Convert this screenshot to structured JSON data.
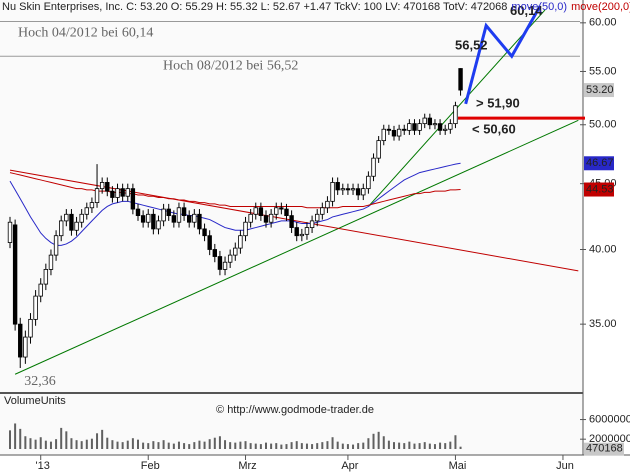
{
  "header": "Nu Skin Enterprises, Inc. C: 53.20 O: 55.29 H: 55.32 L: 52.67 +1.47 TckV: 100 LV: 470168 TotV: 472068",
  "chart_data": {
    "type": "candlestick",
    "categories": [
      null,
      null,
      null,
      null,
      null,
      null,
      "'13",
      null,
      null,
      null,
      null,
      null,
      null,
      null,
      null,
      null,
      null,
      null,
      null,
      null,
      null,
      null,
      null,
      null,
      null,
      null,
      null,
      "Feb",
      null,
      null,
      null,
      null,
      null,
      null,
      null,
      null,
      null,
      null,
      null,
      null,
      null,
      null,
      null,
      null,
      null,
      null,
      "Mrz",
      null,
      null,
      null,
      null,
      null,
      null,
      null,
      null,
      null,
      null,
      null,
      null,
      null,
      null,
      null,
      null,
      null,
      null,
      null,
      "Apr",
      null,
      null,
      null,
      null,
      null,
      null,
      null,
      null,
      null,
      null,
      null,
      null,
      null,
      null,
      null,
      null,
      null,
      null,
      null,
      null,
      "Mai",
      null,
      null,
      null,
      null,
      null,
      null,
      null,
      null,
      null,
      null,
      null,
      null,
      null,
      null,
      null,
      null,
      null,
      null,
      null,
      null,
      "Jun",
      null
    ],
    "open": [
      40.5,
      41.8,
      35.0,
      33.0,
      34.2,
      35.3,
      36.8,
      37.6,
      38.6,
      39.6,
      41.0,
      42.1,
      42.6,
      41.4,
      42.0,
      42.6,
      43.1,
      43.5,
      44.6,
      45.1,
      44.4,
      43.9,
      44.6,
      44.0,
      44.6,
      43.0,
      42.5,
      42.0,
      42.6,
      41.5,
      42.1,
      43.0,
      42.5,
      42.0,
      43.1,
      42.5,
      42.0,
      42.6,
      41.5,
      41.0,
      40.0,
      39.5,
      38.6,
      39.1,
      39.6,
      40.1,
      41.0,
      42.0,
      42.6,
      43.1,
      42.5,
      42.0,
      42.6,
      43.1,
      43.0,
      42.5,
      41.6,
      41.0,
      41.1,
      41.6,
      42.1,
      42.6,
      43.1,
      43.6,
      45.1,
      44.5,
      44.6,
      44.5,
      44.6,
      44.1,
      44.6,
      45.6,
      47.1,
      48.6,
      49.6,
      49.5,
      49.0,
      49.6,
      49.5,
      50.1,
      49.5,
      50.1,
      50.6,
      50.0,
      50.1,
      49.5,
      49.6,
      50.1,
      55.29,
      null,
      null,
      null,
      null,
      null,
      null,
      null,
      null,
      null,
      null,
      null,
      null,
      null,
      null,
      null,
      null,
      null,
      null,
      null,
      null,
      null
    ],
    "high": [
      42.4,
      42.2,
      35.4,
      34.6,
      35.7,
      37.2,
      38.0,
      39.0,
      40.0,
      41.4,
      42.5,
      43.0,
      43.0,
      42.4,
      43.0,
      43.5,
      43.9,
      46.6,
      45.5,
      45.5,
      44.8,
      45.0,
      45.0,
      45.0,
      45.0,
      43.4,
      42.9,
      43.0,
      43.0,
      42.5,
      43.4,
      43.4,
      42.9,
      43.5,
      43.5,
      42.9,
      43.0,
      43.0,
      41.9,
      41.4,
      40.4,
      39.9,
      39.5,
      40.0,
      40.5,
      41.4,
      42.4,
      43.0,
      43.5,
      43.5,
      42.9,
      43.0,
      43.5,
      43.5,
      43.4,
      42.9,
      42.0,
      41.5,
      42.0,
      42.5,
      43.0,
      43.5,
      44.0,
      45.5,
      45.5,
      45.0,
      45.0,
      45.0,
      45.0,
      45.0,
      46.0,
      47.5,
      49.0,
      50.0,
      50.0,
      49.9,
      50.0,
      50.0,
      50.5,
      50.5,
      50.5,
      51.0,
      51.0,
      50.5,
      50.5,
      50.0,
      50.5,
      52.1,
      55.32,
      null,
      null,
      null,
      null,
      null,
      null,
      null,
      null,
      null,
      null,
      null,
      null,
      null,
      null,
      null,
      null,
      null,
      null,
      null,
      null,
      null
    ],
    "low": [
      40.1,
      34.6,
      32.36,
      32.6,
      33.8,
      34.9,
      36.4,
      37.2,
      38.2,
      39.2,
      40.6,
      41.7,
      41.0,
      41.0,
      41.6,
      42.2,
      42.7,
      43.1,
      44.2,
      44.0,
      43.5,
      43.5,
      43.6,
      43.6,
      42.6,
      42.1,
      41.6,
      41.6,
      41.1,
      41.1,
      41.7,
      42.1,
      41.6,
      41.6,
      42.1,
      41.6,
      41.6,
      41.1,
      40.6,
      39.6,
      39.1,
      38.2,
      38.2,
      38.7,
      39.2,
      39.7,
      40.6,
      41.6,
      42.2,
      42.1,
      41.6,
      41.6,
      42.2,
      42.6,
      42.1,
      41.2,
      40.6,
      40.6,
      40.7,
      41.2,
      41.7,
      42.2,
      42.7,
      43.2,
      44.1,
      44.1,
      44.1,
      44.1,
      43.7,
      43.7,
      44.2,
      45.2,
      46.7,
      48.2,
      49.1,
      48.6,
      48.6,
      49.1,
      49.1,
      49.1,
      49.1,
      49.7,
      49.6,
      49.6,
      49.1,
      49.1,
      49.2,
      49.7,
      52.67,
      null,
      null,
      null,
      null,
      null,
      null,
      null,
      null,
      null,
      null,
      null,
      null,
      null,
      null,
      null,
      null,
      null,
      null,
      null,
      null,
      null
    ],
    "close": [
      42.0,
      35.0,
      33.0,
      34.2,
      35.3,
      36.8,
      37.6,
      38.6,
      39.6,
      41.0,
      42.1,
      42.6,
      41.4,
      42.0,
      42.6,
      43.1,
      43.5,
      44.6,
      45.1,
      44.4,
      43.9,
      44.6,
      44.0,
      44.6,
      43.0,
      42.5,
      42.0,
      42.6,
      41.5,
      42.1,
      43.0,
      42.5,
      42.0,
      43.1,
      42.5,
      42.0,
      42.6,
      41.5,
      41.0,
      40.0,
      39.5,
      38.6,
      39.1,
      39.6,
      40.1,
      41.0,
      42.0,
      42.6,
      43.1,
      42.5,
      42.0,
      42.6,
      43.1,
      43.0,
      42.5,
      41.6,
      41.0,
      41.1,
      41.6,
      42.1,
      42.6,
      43.1,
      43.6,
      45.1,
      44.5,
      44.6,
      44.5,
      44.6,
      44.1,
      44.6,
      45.6,
      47.1,
      48.6,
      49.6,
      49.5,
      49.0,
      49.6,
      49.5,
      50.1,
      49.5,
      50.1,
      50.6,
      50.0,
      50.1,
      49.5,
      49.6,
      50.1,
      51.73,
      53.2,
      null,
      null,
      null,
      null,
      null,
      null,
      null,
      null,
      null,
      null,
      null,
      null,
      null,
      null,
      null,
      null,
      null,
      null,
      null,
      null,
      null
    ],
    "close_label": "53.20",
    "low_label": "32,36",
    "up_color": "#ffffff",
    "down_color": "#000000",
    "ylim": [
      31,
      62.5
    ],
    "log_scale": true,
    "yticks": [
      {
        "value": 35,
        "label": "35.00"
      },
      {
        "value": 40,
        "label": "40.00"
      },
      {
        "value": 45,
        "label": "45.00"
      },
      {
        "value": 50,
        "label": "50.00"
      },
      {
        "value": 55,
        "label": "55.00"
      },
      {
        "value": 60,
        "label": "60.00"
      }
    ],
    "series": [
      {
        "name": "move(50,0)",
        "color": "#2828c8",
        "last_label": "46.67",
        "values": [
          45.2,
          44.5,
          43.8,
          43.1,
          42.4,
          41.8,
          41.2,
          40.8,
          40.5,
          40.3,
          40.3,
          40.4,
          40.6,
          40.9,
          41.3,
          41.7,
          42.1,
          42.5,
          42.9,
          43.2,
          43.4,
          43.5,
          43.6,
          43.6,
          43.5,
          43.4,
          43.3,
          43.2,
          43.1,
          43.0,
          42.9,
          42.8,
          42.7,
          42.6,
          42.6,
          42.5,
          42.5,
          42.4,
          42.3,
          42.2,
          42.0,
          41.8,
          41.6,
          41.5,
          41.4,
          41.4,
          41.4,
          41.5,
          41.6,
          41.7,
          41.8,
          41.9,
          42.0,
          42.1,
          42.1,
          42.1,
          42.0,
          41.9,
          41.9,
          41.9,
          42.0,
          42.1,
          42.2,
          42.4,
          42.5,
          42.6,
          42.7,
          42.8,
          42.9,
          43.0,
          43.2,
          43.5,
          43.8,
          44.1,
          44.4,
          44.7,
          45.0,
          45.3,
          45.5,
          45.7,
          45.9,
          46.0,
          46.1,
          46.2,
          46.3,
          46.4,
          46.5,
          46.6,
          46.67,
          null,
          null,
          null,
          null,
          null,
          null,
          null,
          null,
          null,
          null,
          null,
          null,
          null,
          null,
          null,
          null,
          null,
          null,
          null,
          null,
          null
        ]
      },
      {
        "name": "move(200,0)",
        "color": "#c00000",
        "last_label": "44.53",
        "values": [
          45.9,
          45.8,
          45.7,
          45.6,
          45.5,
          45.4,
          45.3,
          45.2,
          45.1,
          45.0,
          44.9,
          44.8,
          44.7,
          44.6,
          44.6,
          44.5,
          44.5,
          44.4,
          44.4,
          44.4,
          44.3,
          44.3,
          44.3,
          44.2,
          44.2,
          44.1,
          44.1,
          44.0,
          44.0,
          43.9,
          43.9,
          43.8,
          43.8,
          43.7,
          43.7,
          43.6,
          43.6,
          43.5,
          43.5,
          43.4,
          43.4,
          43.3,
          43.3,
          43.2,
          43.2,
          43.2,
          43.2,
          43.2,
          43.2,
          43.2,
          43.2,
          43.2,
          43.2,
          43.2,
          43.2,
          43.2,
          43.2,
          43.2,
          43.1,
          43.1,
          43.1,
          43.1,
          43.1,
          43.1,
          43.1,
          43.2,
          43.2,
          43.2,
          43.2,
          43.2,
          43.3,
          43.4,
          43.5,
          43.6,
          43.7,
          43.8,
          43.9,
          44.0,
          44.1,
          44.2,
          44.2,
          44.3,
          44.3,
          44.4,
          44.4,
          44.4,
          44.5,
          44.5,
          44.53,
          null,
          null,
          null,
          null,
          null,
          null,
          null,
          null,
          null,
          null,
          null,
          null,
          null,
          null,
          null,
          null,
          null,
          null,
          null,
          null,
          null
        ]
      }
    ],
    "volume": {
      "title": "VolumeUnits",
      "color": "#606060",
      "ylim": [
        0,
        11000000
      ],
      "yticks": [
        2000000,
        6000000
      ],
      "values": [
        3800000,
        5200000,
        4100000,
        2600000,
        2200000,
        1900000,
        2400000,
        1700000,
        1500000,
        2000000,
        4300000,
        3600000,
        2200000,
        1800000,
        1600000,
        1900000,
        2100000,
        3200000,
        3900000,
        2300000,
        1800000,
        1500000,
        1400000,
        1700000,
        2200000,
        1900000,
        1300000,
        1200000,
        1600000,
        1400000,
        1800000,
        1300000,
        1100000,
        1500000,
        1200000,
        1000000,
        1400000,
        1700000,
        1500000,
        2000000,
        2300000,
        2600000,
        1800000,
        1400000,
        1300000,
        1500000,
        1600000,
        1200000,
        1100000,
        1000000,
        1300000,
        1100000,
        1200000,
        900000,
        1000000,
        1400000,
        1600000,
        1200000,
        1100000,
        1000000,
        1200000,
        1400000,
        1600000,
        2400000,
        1500000,
        1100000,
        1000000,
        900000,
        1200000,
        1300000,
        2200000,
        3100000,
        3500000,
        2600000,
        1700000,
        1400000,
        1300000,
        1200000,
        1500000,
        1100000,
        1200000,
        1400000,
        1100000,
        1000000,
        1300000,
        1200000,
        1500000,
        2800000,
        470168,
        null,
        null,
        null,
        null,
        null,
        null,
        null,
        null,
        null,
        null,
        null,
        null,
        null,
        null,
        null,
        null,
        null,
        null,
        null,
        null,
        null
      ]
    },
    "levels": [
      {
        "value": 60.14,
        "label": "Hoch 04/2012 bei 60,14"
      },
      {
        "value": 56.52,
        "label": "Hoch 08/2012 bei 56,52"
      }
    ],
    "trendlines": [
      {
        "color": "#007800",
        "x": [
          1,
          111
        ],
        "y": [
          32.0,
          50.4
        ]
      },
      {
        "color": "#007800",
        "x": [
          70,
          104.5
        ],
        "y": [
          43.2,
          61.4
        ]
      },
      {
        "color": "#c00000",
        "x": [
          0,
          111
        ],
        "y": [
          46.1,
          38.5
        ]
      }
    ],
    "projection": {
      "color": "#1e3cf0",
      "x": [
        89,
        93,
        98,
        103.5
      ],
      "y": [
        51.9,
        59.7,
        56.52,
        61.8
      ],
      "targets": [
        {
          "value": 56.52,
          "label": "56,52"
        },
        {
          "value": 60.14,
          "label": "60,14"
        }
      ]
    },
    "entry": {
      "value": 51.9,
      "label": "> 51,90",
      "color": "#1e3cf0"
    },
    "stop": {
      "value": 50.6,
      "label": "< 50,60",
      "color": "#e00000"
    },
    "source": "© http://www.godmode-trader.de"
  }
}
